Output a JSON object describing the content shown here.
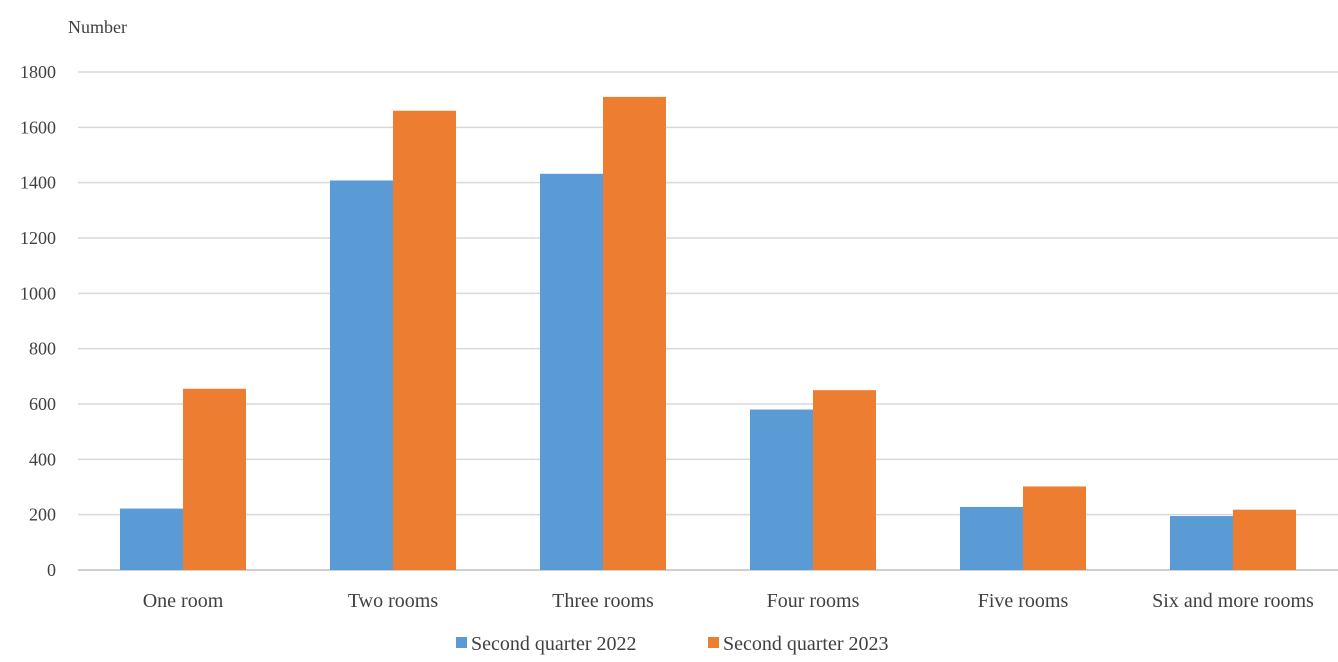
{
  "chart_data": {
    "type": "bar",
    "title": "",
    "xlabel": "",
    "ylabel": "Number",
    "ylim": [
      0,
      1800
    ],
    "yticks": [
      0,
      200,
      400,
      600,
      800,
      1000,
      1200,
      1400,
      1600,
      1800
    ],
    "grid": true,
    "legend_position": "bottom",
    "categories": [
      "One room",
      "Two rooms",
      "Three rooms",
      "Four rooms",
      "Five rooms",
      "Six and more rooms"
    ],
    "series": [
      {
        "name": "Second quarter 2022",
        "color": "#5B9BD5",
        "values": [
          222,
          1408,
          1432,
          580,
          228,
          195
        ]
      },
      {
        "name": "Second quarter 2023",
        "color": "#ED7D31",
        "values": [
          655,
          1660,
          1710,
          650,
          302,
          218
        ]
      }
    ]
  }
}
